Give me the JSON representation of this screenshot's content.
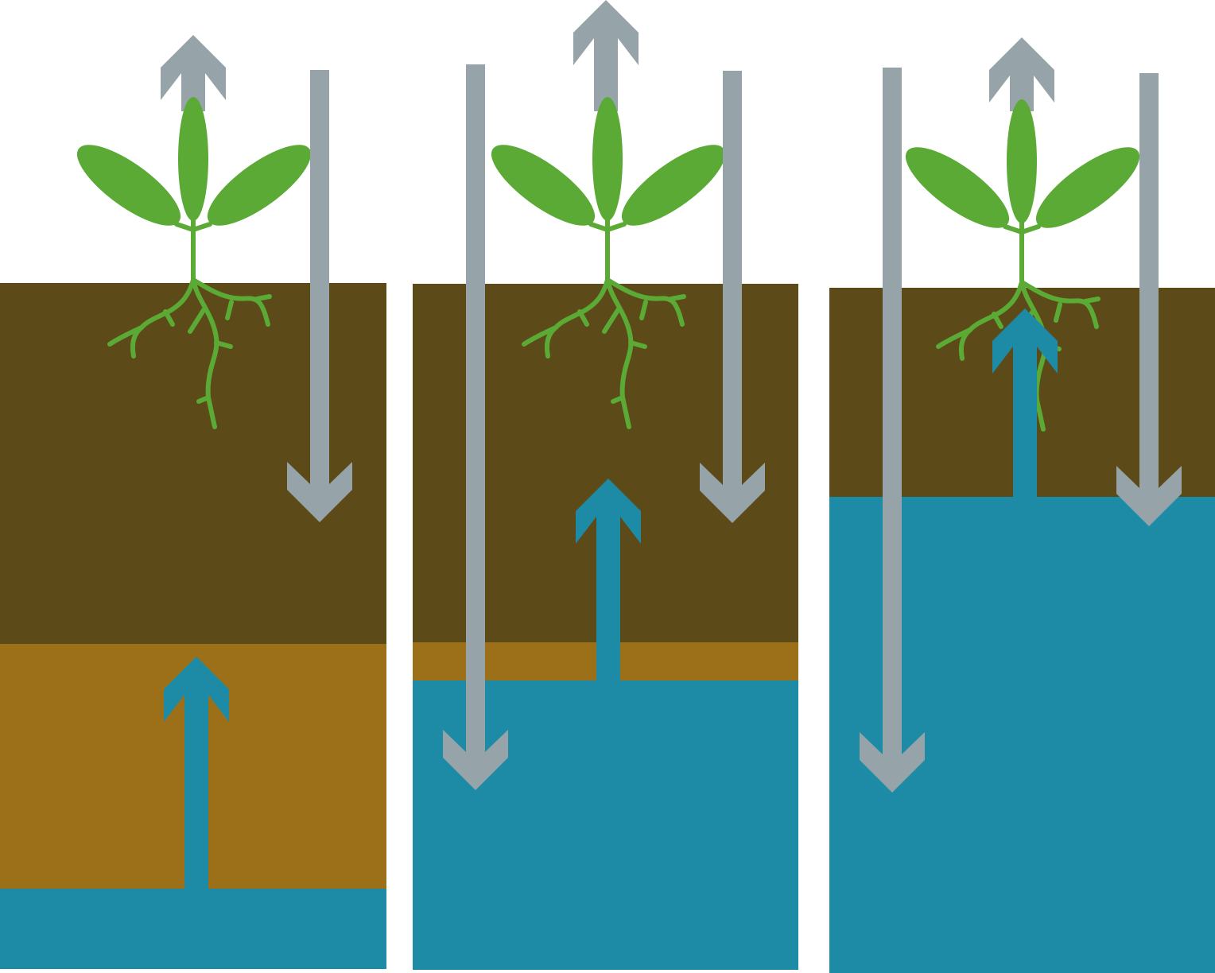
{
  "colors": {
    "background": "#ffffff",
    "topsoil": "#5c4a18",
    "subsoil": "#9b7019",
    "water": "#1e8ba6",
    "arrow_gray": "#96a4a9",
    "plant_green": "#5aaa35"
  },
  "panels": [
    {
      "name": "panel-1",
      "layers": [
        "topsoil",
        "subsoil",
        "groundwater"
      ],
      "arrows": [
        {
          "name": "evaporation-arrow",
          "direction": "up",
          "icon": "arrow-up"
        },
        {
          "name": "rainfall-arrow",
          "direction": "down",
          "icon": "arrow-down"
        },
        {
          "name": "capillary-rise-arrow",
          "direction": "up",
          "icon": "arrow-up"
        }
      ],
      "plant": "plant-icon"
    },
    {
      "name": "panel-2",
      "layers": [
        "topsoil",
        "subsoil",
        "groundwater"
      ],
      "arrows": [
        {
          "name": "evaporation-arrow",
          "direction": "up",
          "icon": "arrow-up"
        },
        {
          "name": "rainfall-arrow-deep",
          "direction": "down",
          "icon": "arrow-down"
        },
        {
          "name": "rainfall-arrow",
          "direction": "down",
          "icon": "arrow-down"
        },
        {
          "name": "capillary-rise-arrow",
          "direction": "up",
          "icon": "arrow-up"
        }
      ],
      "plant": "plant-icon"
    },
    {
      "name": "panel-3",
      "layers": [
        "topsoil",
        "groundwater"
      ],
      "arrows": [
        {
          "name": "evaporation-arrow",
          "direction": "up",
          "icon": "arrow-up"
        },
        {
          "name": "rainfall-arrow-deep",
          "direction": "down",
          "icon": "arrow-down"
        },
        {
          "name": "rainfall-arrow",
          "direction": "down",
          "icon": "arrow-down"
        },
        {
          "name": "capillary-rise-arrow",
          "direction": "up",
          "icon": "arrow-up"
        }
      ],
      "plant": "plant-icon"
    }
  ]
}
